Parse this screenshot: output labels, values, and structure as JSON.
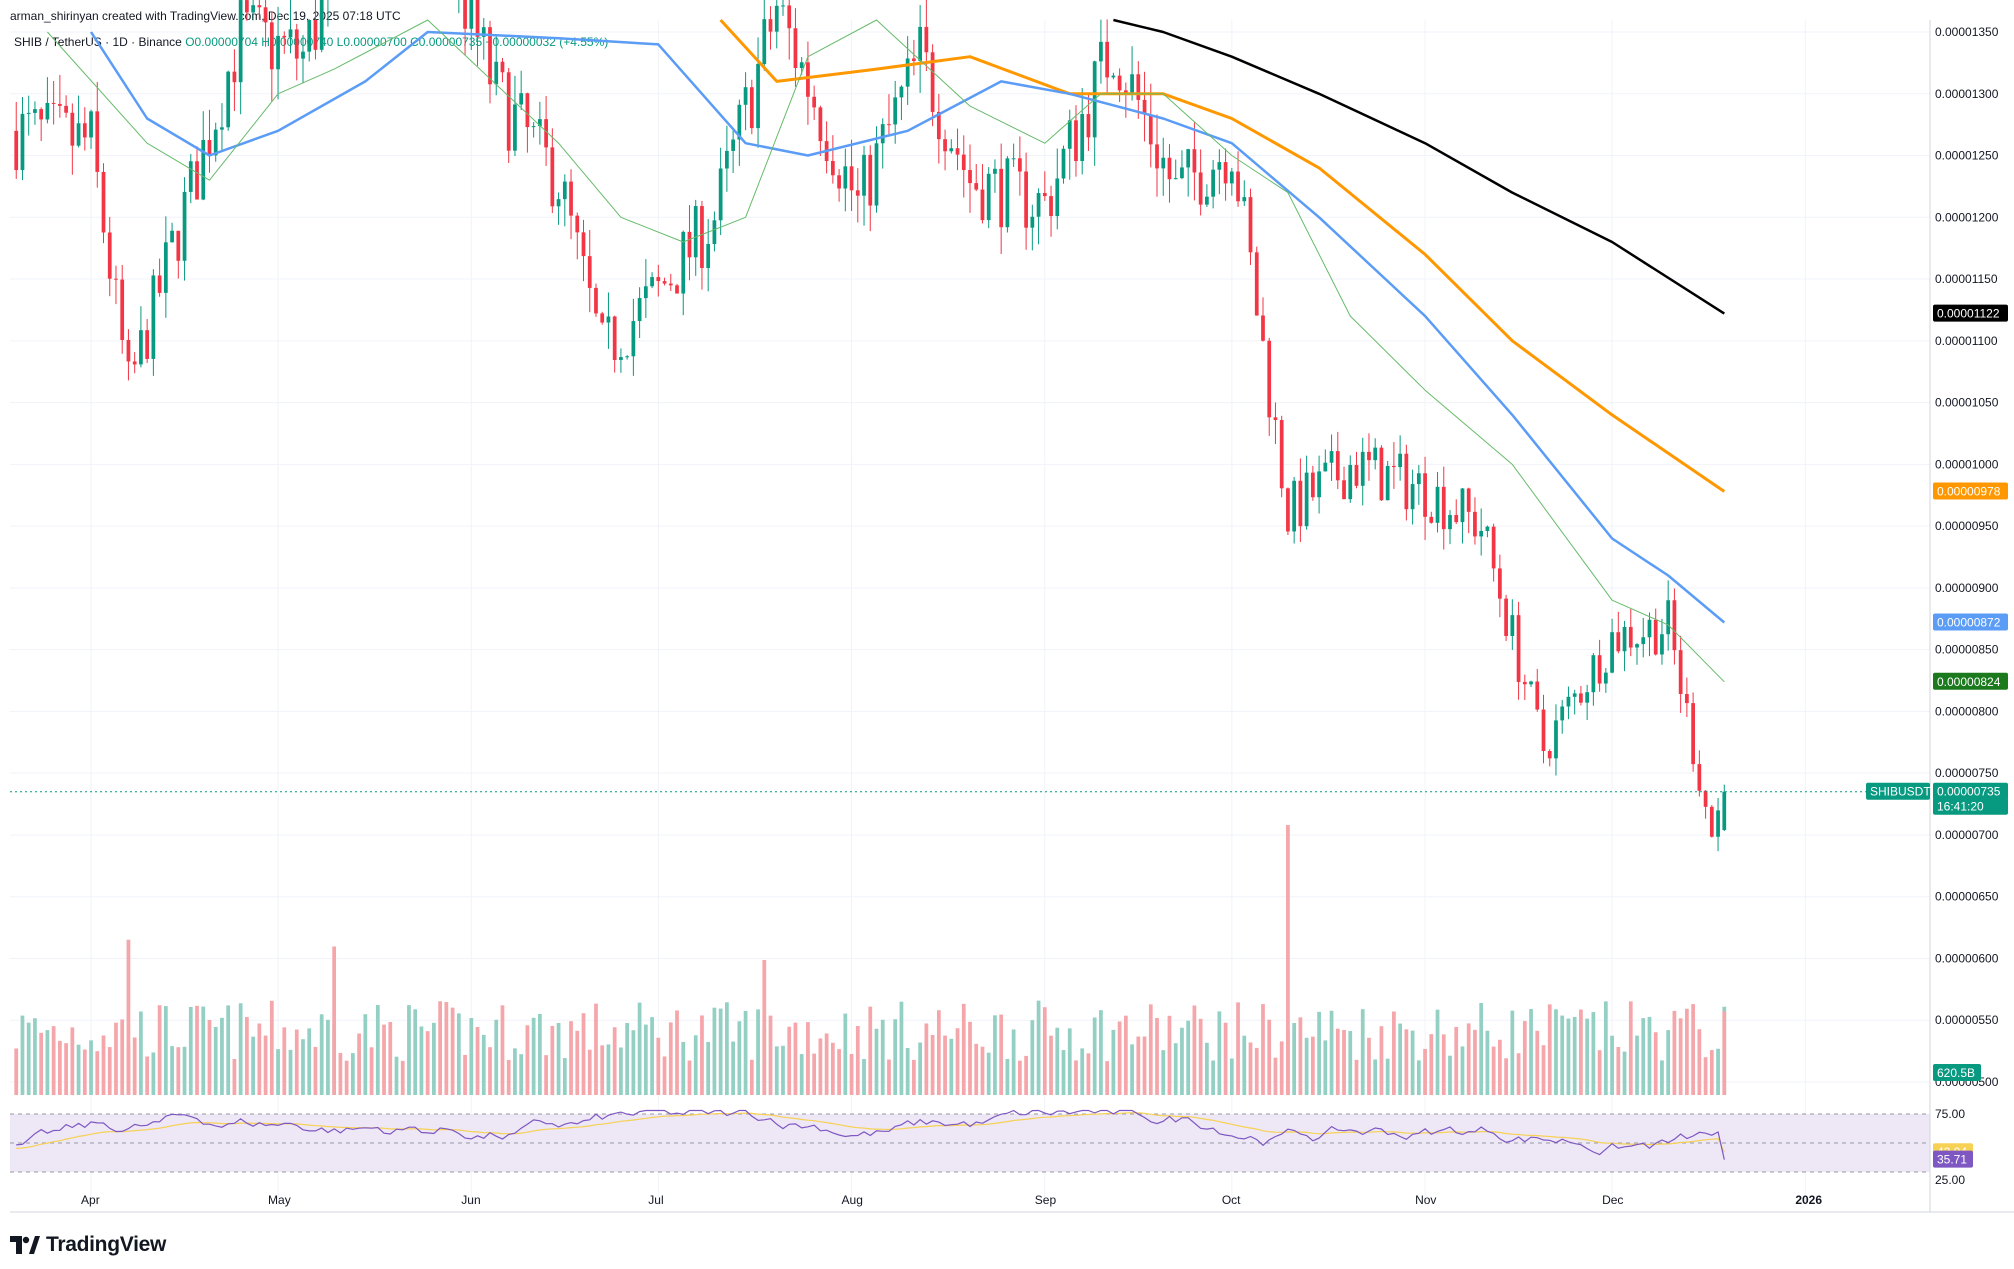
{
  "header": {
    "credit": "arman_shirinyan created with TradingView.com, Dec 19, 2025 07:18 UTC",
    "symbol": "SHIB / TetherUS · 1D · Binance",
    "ohlc": "O0.00000704 H0.00000740 L0.00000700 C0.00000735 +0.00000032 (+4.55%)"
  },
  "brand": {
    "name": "TradingView"
  },
  "colors": {
    "up": "#089981",
    "down": "#f23645",
    "up_volume": "#93cfc3",
    "down_volume": "#f5a6aa",
    "ma20": "#66bb6a",
    "ma50": "#5b9cf6",
    "ma100": "#ff9800",
    "ma200": "#000000",
    "rsi": "#7e57c2",
    "rsi_ma": "#f7d154",
    "rsi_band": "#ede7f6"
  },
  "chart_data": {
    "type": "candlestick",
    "x_range": [
      "2025-03-19",
      "2026-01-21"
    ],
    "price_range": [
      5e-06,
      1.36e-05
    ],
    "price_ticks": [
      "0.00001350",
      "0.00001300",
      "0.00001250",
      "0.00001200",
      "0.00001150",
      "0.00001100",
      "0.00001050",
      "0.00001000",
      "0.00000950",
      "0.00000900",
      "0.00000850",
      "0.00000800",
      "0.00000750",
      "0.00000700",
      "0.00000650",
      "0.00000600",
      "0.00000550",
      "0.00000500"
    ],
    "x_ticks": [
      "Apr",
      "May",
      "Jun",
      "Jul",
      "Aug",
      "Sep",
      "Oct",
      "Nov",
      "Dec",
      "2026"
    ],
    "ma_series": [
      {
        "name": "MA200",
        "points": [
          [
            "2025-09-12",
            1.365e-05
          ],
          [
            "2025-09-20",
            1.35e-05
          ],
          [
            "2025-10-01",
            1.33e-05
          ],
          [
            "2025-10-15",
            1.3e-05
          ],
          [
            "2025-11-01",
            1.26e-05
          ],
          [
            "2025-11-15",
            1.22e-05
          ],
          [
            "2025-12-01",
            1.18e-05
          ],
          [
            "2025-12-19",
            1.122e-05
          ]
        ]
      },
      {
        "name": "MA100",
        "points": [
          [
            "2025-07-11",
            1.36e-05
          ],
          [
            "2025-07-20",
            1.31e-05
          ],
          [
            "2025-08-05",
            1.32e-05
          ],
          [
            "2025-08-20",
            1.33e-05
          ],
          [
            "2025-09-05",
            1.3e-05
          ],
          [
            "2025-09-20",
            1.3e-05
          ],
          [
            "2025-10-01",
            1.28e-05
          ],
          [
            "2025-10-15",
            1.24e-05
          ],
          [
            "2025-11-01",
            1.17e-05
          ],
          [
            "2025-11-15",
            1.1e-05
          ],
          [
            "2025-12-01",
            1.04e-05
          ],
          [
            "2025-12-19",
            9.78e-06
          ]
        ]
      },
      {
        "name": "MA50",
        "points": [
          [
            "2025-04-01",
            1.35e-05
          ],
          [
            "2025-04-10",
            1.28e-05
          ],
          [
            "2025-04-20",
            1.25e-05
          ],
          [
            "2025-05-01",
            1.27e-05
          ],
          [
            "2025-05-15",
            1.31e-05
          ],
          [
            "2025-05-25",
            1.35e-05
          ],
          [
            "2025-06-15",
            1.345e-05
          ],
          [
            "2025-07-01",
            1.34e-05
          ],
          [
            "2025-07-15",
            1.26e-05
          ],
          [
            "2025-07-25",
            1.25e-05
          ],
          [
            "2025-08-10",
            1.27e-05
          ],
          [
            "2025-08-25",
            1.31e-05
          ],
          [
            "2025-09-05",
            1.3e-05
          ],
          [
            "2025-09-20",
            1.28e-05
          ],
          [
            "2025-10-01",
            1.26e-05
          ],
          [
            "2025-10-15",
            1.2e-05
          ],
          [
            "2025-11-01",
            1.12e-05
          ],
          [
            "2025-11-15",
            1.04e-05
          ],
          [
            "2025-12-01",
            9.4e-06
          ],
          [
            "2025-12-10",
            9.1e-06
          ],
          [
            "2025-12-19",
            8.72e-06
          ]
        ]
      },
      {
        "name": "MA20",
        "points": [
          [
            "2025-03-25",
            1.35e-05
          ],
          [
            "2025-04-10",
            1.26e-05
          ],
          [
            "2025-04-20",
            1.23e-05
          ],
          [
            "2025-05-01",
            1.3e-05
          ],
          [
            "2025-05-10",
            1.32e-05
          ],
          [
            "2025-05-25",
            1.36e-05
          ],
          [
            "2025-06-15",
            1.26e-05
          ],
          [
            "2025-06-25",
            1.2e-05
          ],
          [
            "2025-07-05",
            1.18e-05
          ],
          [
            "2025-07-15",
            1.2e-05
          ],
          [
            "2025-07-25",
            1.33e-05
          ],
          [
            "2025-08-05",
            1.36e-05
          ],
          [
            "2025-08-20",
            1.29e-05
          ],
          [
            "2025-09-01",
            1.26e-05
          ],
          [
            "2025-09-10",
            1.3e-05
          ],
          [
            "2025-09-20",
            1.3e-05
          ],
          [
            "2025-10-01",
            1.25e-05
          ],
          [
            "2025-10-10",
            1.22e-05
          ],
          [
            "2025-10-20",
            1.12e-05
          ],
          [
            "2025-11-01",
            1.06e-05
          ],
          [
            "2025-11-15",
            1e-05
          ],
          [
            "2025-12-01",
            8.9e-06
          ],
          [
            "2025-12-10",
            8.7e-06
          ],
          [
            "2025-12-19",
            8.24e-06
          ]
        ]
      }
    ],
    "candles_summary": [
      [
        "2025-03-20",
        1.27e-05
      ],
      [
        "2025-04-01",
        1.26e-05
      ],
      [
        "2025-04-07",
        1.06e-05
      ],
      [
        "2025-04-15",
        1.19e-05
      ],
      [
        "2025-04-25",
        1.35e-05
      ],
      [
        "2025-05-05",
        1.33e-05
      ],
      [
        "2025-05-12",
        1.42e-05
      ],
      [
        "2025-05-25",
        1.46e-05
      ],
      [
        "2025-06-05",
        1.3e-05
      ],
      [
        "2025-06-15",
        1.23e-05
      ],
      [
        "2025-06-22",
        1.09e-05
      ],
      [
        "2025-07-01",
        1.14e-05
      ],
      [
        "2025-07-10",
        1.2e-05
      ],
      [
        "2025-07-20",
        1.37e-05
      ],
      [
        "2025-08-02",
        1.21e-05
      ],
      [
        "2025-08-12",
        1.33e-05
      ],
      [
        "2025-08-20",
        1.23e-05
      ],
      [
        "2025-09-01",
        1.21e-05
      ],
      [
        "2025-09-12",
        1.34e-05
      ],
      [
        "2025-09-22",
        1.22e-05
      ],
      [
        "2025-10-01",
        1.26e-05
      ],
      [
        "2025-10-10",
        9.6e-06
      ],
      [
        "2025-10-20",
        1e-05
      ],
      [
        "2025-11-01",
        9.8e-06
      ],
      [
        "2025-11-10",
        9.5e-06
      ],
      [
        "2025-11-20",
        7.7e-06
      ],
      [
        "2025-12-01",
        8.6e-06
      ],
      [
        "2025-12-10",
        8.7e-06
      ],
      [
        "2025-12-17",
        7e-06
      ],
      [
        "2025-12-19",
        7.35e-06
      ]
    ],
    "volume_summary": [
      [
        "2025-04-07",
        1150
      ],
      [
        "2025-05-10",
        1100
      ],
      [
        "2025-07-18",
        1000
      ],
      [
        "2025-10-10",
        2000
      ],
      [
        "2025-12-19",
        620.5
      ]
    ],
    "rsi": {
      "upper": 75,
      "lower": 25,
      "value": 35.71,
      "ma": 42.04
    },
    "tags": {
      "ma200": "0.00001122",
      "ma100": "0.00000978",
      "ma50": "0.00000872",
      "ma20": "0.00000824",
      "symbol": "SHIBUSDT",
      "last": "0.00000735",
      "countdown": "16:41:20",
      "volume": "620.5B",
      "rsi_ma": "42.04",
      "rsi_value": "35.71",
      "rsi_upper": "75.00",
      "rsi_lower": "25.00"
    }
  }
}
